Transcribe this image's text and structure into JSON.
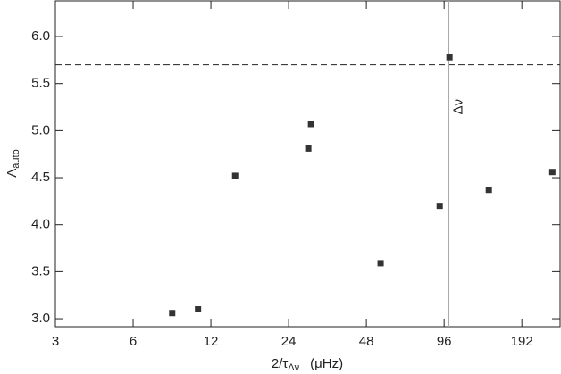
{
  "chart_data": {
    "type": "scatter",
    "xlabel": [
      "2/τ",
      "Δν",
      "(μHz)"
    ],
    "ylabel": [
      "A",
      "auto"
    ],
    "x": [
      8.5,
      10.7,
      14.9,
      28.6,
      29.3,
      54.5,
      92.3,
      100.7,
      143,
      252
    ],
    "values": [
      3.06,
      3.1,
      4.52,
      4.81,
      5.07,
      3.59,
      4.2,
      5.78,
      4.37,
      4.56
    ],
    "color": "#333333",
    "xscale": "log",
    "xlim": [
      3,
      270
    ],
    "ylim": [
      2.915,
      6.38
    ],
    "xticks": [
      3,
      6,
      12,
      24,
      48,
      96,
      192
    ],
    "yticks": [
      {
        "value": 3,
        "label": "3.0"
      },
      {
        "value": 3.5,
        "label": "3.5"
      },
      {
        "value": 4,
        "label": "4.0"
      },
      {
        "value": 4.5,
        "label": "4.5"
      },
      {
        "value": 5,
        "label": "5.0"
      },
      {
        "value": 5.5,
        "label": "5.5"
      },
      {
        "value": 6,
        "label": "6.0"
      }
    ],
    "hline": 5.7,
    "vline": {
      "value": 100,
      "label": "Δν"
    }
  }
}
